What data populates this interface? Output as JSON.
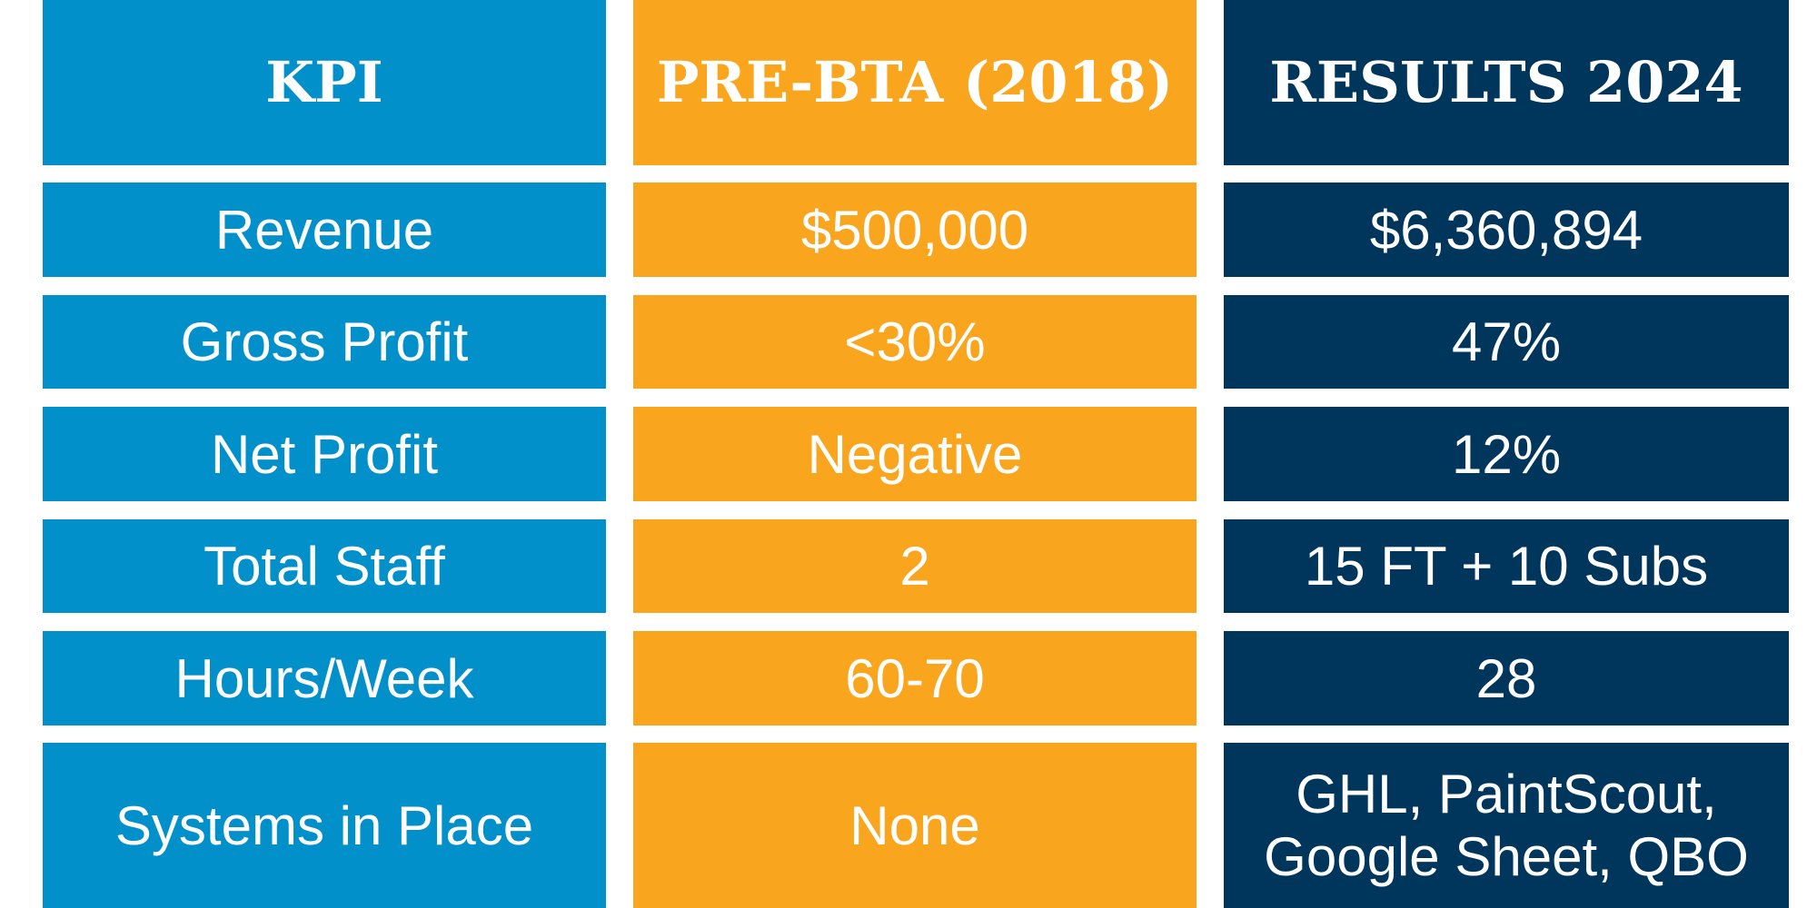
{
  "header": {
    "kpi": "KPI",
    "pre": "PRE-BTA (2018)",
    "results": "RESULTS 2024"
  },
  "rows": [
    {
      "kpi": "Revenue",
      "pre": "$500,000",
      "results": "$6,360,894"
    },
    {
      "kpi": "Gross Profit",
      "pre": "<30%",
      "results": "47%"
    },
    {
      "kpi": "Net Profit",
      "pre": "Negative",
      "results": "12%"
    },
    {
      "kpi": "Total Staff",
      "pre": "2",
      "results": "15 FT + 10 Subs"
    },
    {
      "kpi": "Hours/Week",
      "pre": "60-70",
      "results": "28"
    },
    {
      "kpi": "Systems in Place",
      "pre": "None",
      "results_line1": "GHL, PaintScout,",
      "results_line2": "Google Sheet, QBO"
    }
  ],
  "colors": {
    "kpi_column": "#0290cb",
    "pre_column": "#f9a61e",
    "results_column": "#00365b",
    "text": "#ffffff"
  }
}
